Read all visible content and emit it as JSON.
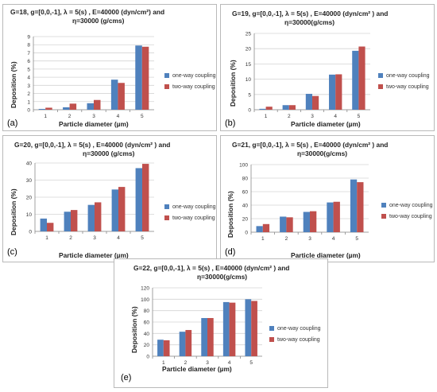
{
  "colors": {
    "one_way": "#4f81bd",
    "two_way": "#c0504d",
    "grid": "#d4d4d4",
    "axis": "#8a8a8a"
  },
  "chart_data": [
    {
      "type": "bar",
      "panel_label": "(a)",
      "title_line1": "G=18, g=[0,0,-1], λ = 5(s) , E=40000 (dyn/cm²) and",
      "title_line2": "η=30000 (g/cms)",
      "xlabel": "Particle diameter (µm)",
      "ylabel": "Deposition (%)",
      "categories": [
        "1",
        "2",
        "3",
        "4",
        "5"
      ],
      "ylim": [
        0,
        9
      ],
      "yticks": [
        "0",
        "1",
        "2",
        "3",
        "4",
        "5",
        "6",
        "7",
        "8",
        "9"
      ],
      "grid": true,
      "legend_position": "right",
      "series": [
        {
          "name": "one-way coupling",
          "values": [
            0.1,
            0.3,
            0.8,
            3.7,
            7.9
          ]
        },
        {
          "name": "two-way coupling",
          "values": [
            0.25,
            0.75,
            1.2,
            3.3,
            7.75
          ]
        }
      ]
    },
    {
      "type": "bar",
      "panel_label": "(b)",
      "title_line1": "G=19, g=[0,0,-1], λ = 5(s) , E=40000 (dyn/cm² ) and",
      "title_line2": "η=30000(g/cms)",
      "xlabel": "Particle diameter (µm)",
      "ylabel": "Deposition (%)",
      "categories": [
        "1",
        "2",
        "3",
        "4",
        "5"
      ],
      "ylim": [
        0,
        25
      ],
      "yticks": [
        "0",
        "5",
        "10",
        "15",
        "20",
        "25"
      ],
      "grid": true,
      "legend_position": "right",
      "series": [
        {
          "name": "one-way coupling",
          "values": [
            0.3,
            1.5,
            5.2,
            11.5,
            19.3
          ]
        },
        {
          "name": "two-way coupling",
          "values": [
            1.0,
            1.5,
            4.5,
            11.6,
            20.7
          ]
        }
      ]
    },
    {
      "type": "bar",
      "panel_label": "(c)",
      "title_line1": "G=20, g=[0,0,-1], λ = 5(s) , E=40000 (dyn/cm² ) and",
      "title_line2": "η=30000 (g/cms)",
      "xlabel": "Particle diameter (µm)",
      "ylabel": "Deposition (%)",
      "categories": [
        "1",
        "2",
        "3",
        "4",
        "5"
      ],
      "ylim": [
        0,
        40
      ],
      "yticks": [
        "0",
        "10",
        "20",
        "30",
        "40"
      ],
      "grid": true,
      "legend_position": "right",
      "series": [
        {
          "name": "one-way coupling",
          "values": [
            7.5,
            11.5,
            15.5,
            24.5,
            37.0
          ]
        },
        {
          "name": "two-way coupling",
          "values": [
            5.0,
            12.5,
            17.0,
            26.0,
            39.5
          ]
        }
      ]
    },
    {
      "type": "bar",
      "panel_label": "(d)",
      "title_line1": "G=21, g=[0,0,-1], λ = 5(s) , E=40000 (dyn/cm² ) and",
      "title_line2": "η=30000(g/cms)",
      "xlabel": "Particle diameter (µm)",
      "ylabel": "Deposition (%)",
      "categories": [
        "1",
        "2",
        "3",
        "4",
        "5"
      ],
      "ylim": [
        0,
        100
      ],
      "yticks": [
        "0",
        "20",
        "40",
        "60",
        "80",
        "100"
      ],
      "grid": true,
      "legend_position": "right",
      "series": [
        {
          "name": "one-way coupling",
          "values": [
            9,
            23,
            30,
            44,
            78
          ]
        },
        {
          "name": "two-way coupling",
          "values": [
            12,
            22,
            31,
            45,
            74
          ]
        }
      ]
    },
    {
      "type": "bar",
      "panel_label": "(e)",
      "title_line1": "G=22, g=[0,0,-1], λ = 5(s) , E=40000 (dyn/cm² ) and",
      "title_line2": "η=30000(g/cms)",
      "xlabel": "Particle diameter (µm)",
      "ylabel": "Deposition (%)",
      "categories": [
        "1",
        "2",
        "3",
        "4",
        "5"
      ],
      "ylim": [
        0,
        120
      ],
      "yticks": [
        "0",
        "20",
        "40",
        "60",
        "80",
        "100",
        "120"
      ],
      "grid": true,
      "legend_position": "right",
      "series": [
        {
          "name": "one-way coupling",
          "values": [
            29,
            43,
            67,
            95,
            100
          ]
        },
        {
          "name": "two-way coupling",
          "values": [
            28,
            46,
            67,
            94,
            97
          ]
        }
      ]
    }
  ]
}
